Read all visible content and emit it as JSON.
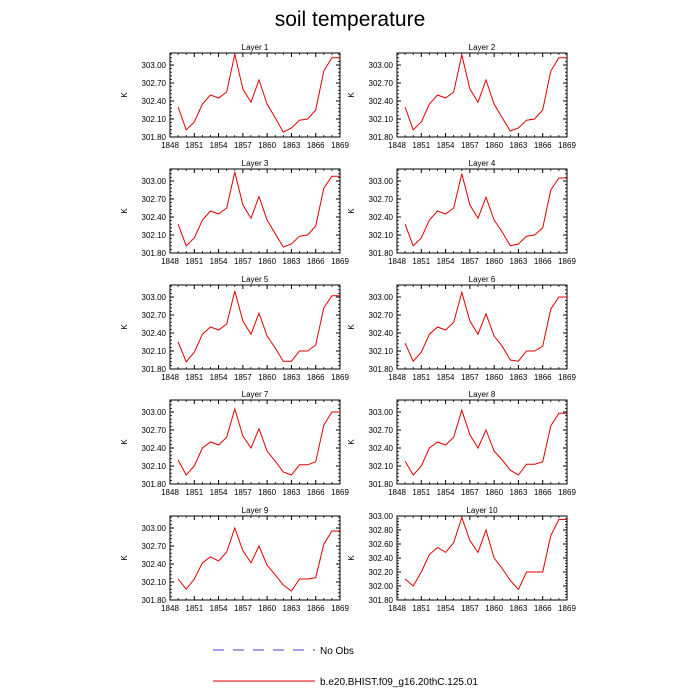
{
  "title": "soil temperature",
  "legend": {
    "placement": "bottom-center",
    "entries": [
      {
        "label": "No Obs",
        "color": "#4040c0",
        "style": "dashed"
      },
      {
        "label": "b.e20.BHIST.f09_g16.20thC.125.01",
        "color": "#e00000",
        "style": "solid"
      }
    ]
  },
  "chart_data": [
    {
      "type": "line",
      "title": "Layer 1",
      "ylabel": "K",
      "xlim": [
        1848,
        1869
      ],
      "ylim": [
        301.8,
        303.2
      ],
      "xticks": [
        "1848",
        "1851",
        "1854",
        "1857",
        "1860",
        "1863",
        "1866",
        "1869"
      ],
      "yticks": [
        "301.80",
        "302.10",
        "302.40",
        "302.70",
        "303.00"
      ],
      "x": [
        1849,
        1850,
        1851,
        1852,
        1853,
        1854,
        1855,
        1856,
        1857,
        1858,
        1859,
        1860,
        1861,
        1862,
        1863,
        1864,
        1865,
        1866,
        1867,
        1868,
        1869
      ],
      "series": [
        {
          "name": "b.e20.BHIST.f09_g16.20thC.125.01",
          "color": "#e00000",
          "values": [
            302.3,
            301.92,
            302.05,
            302.35,
            302.5,
            302.45,
            302.55,
            303.18,
            302.6,
            302.38,
            302.75,
            302.35,
            302.12,
            301.88,
            301.95,
            302.08,
            302.1,
            302.25,
            302.9,
            303.12,
            303.12
          ]
        }
      ]
    },
    {
      "type": "line",
      "title": "Layer 2",
      "ylabel": "K",
      "xlim": [
        1848,
        1869
      ],
      "ylim": [
        301.8,
        303.2
      ],
      "xticks": [
        "1848",
        "1851",
        "1854",
        "1857",
        "1860",
        "1863",
        "1866",
        "1869"
      ],
      "yticks": [
        "301.80",
        "302.10",
        "302.40",
        "302.70",
        "303.00"
      ],
      "x": [
        1849,
        1850,
        1851,
        1852,
        1853,
        1854,
        1855,
        1856,
        1857,
        1858,
        1859,
        1860,
        1861,
        1862,
        1863,
        1864,
        1865,
        1866,
        1867,
        1868,
        1869
      ],
      "series": [
        {
          "name": "b.e20.BHIST.f09_g16.20thC.125.01",
          "color": "#e00000",
          "values": [
            302.3,
            301.92,
            302.05,
            302.35,
            302.5,
            302.45,
            302.55,
            303.17,
            302.6,
            302.38,
            302.75,
            302.35,
            302.12,
            301.9,
            301.95,
            302.08,
            302.1,
            302.25,
            302.9,
            303.12,
            303.12
          ]
        }
      ]
    },
    {
      "type": "line",
      "title": "Layer 3",
      "ylabel": "K",
      "xlim": [
        1848,
        1869
      ],
      "ylim": [
        301.8,
        303.2
      ],
      "xticks": [
        "1848",
        "1851",
        "1854",
        "1857",
        "1860",
        "1863",
        "1866",
        "1869"
      ],
      "yticks": [
        "301.80",
        "302.10",
        "302.40",
        "302.70",
        "303.00"
      ],
      "x": [
        1849,
        1850,
        1851,
        1852,
        1853,
        1854,
        1855,
        1856,
        1857,
        1858,
        1859,
        1860,
        1861,
        1862,
        1863,
        1864,
        1865,
        1866,
        1867,
        1868,
        1869
      ],
      "series": [
        {
          "name": "b.e20.BHIST.f09_g16.20thC.125.01",
          "color": "#e00000",
          "values": [
            302.28,
            301.92,
            302.05,
            302.35,
            302.5,
            302.45,
            302.55,
            303.15,
            302.6,
            302.38,
            302.74,
            302.35,
            302.12,
            301.9,
            301.95,
            302.08,
            302.1,
            302.25,
            302.88,
            303.08,
            303.08
          ]
        }
      ]
    },
    {
      "type": "line",
      "title": "Layer 4",
      "ylabel": "K",
      "xlim": [
        1848,
        1869
      ],
      "ylim": [
        301.8,
        303.2
      ],
      "xticks": [
        "1848",
        "1851",
        "1854",
        "1857",
        "1860",
        "1863",
        "1866",
        "1869"
      ],
      "yticks": [
        "301.80",
        "302.10",
        "302.40",
        "302.70",
        "303.00"
      ],
      "x": [
        1849,
        1850,
        1851,
        1852,
        1853,
        1854,
        1855,
        1856,
        1857,
        1858,
        1859,
        1860,
        1861,
        1862,
        1863,
        1864,
        1865,
        1866,
        1867,
        1868,
        1869
      ],
      "series": [
        {
          "name": "b.e20.BHIST.f09_g16.20thC.125.01",
          "color": "#e00000",
          "values": [
            302.28,
            301.92,
            302.05,
            302.35,
            302.5,
            302.45,
            302.55,
            303.12,
            302.6,
            302.38,
            302.73,
            302.35,
            302.15,
            301.92,
            301.95,
            302.08,
            302.1,
            302.22,
            302.85,
            303.05,
            303.05
          ]
        }
      ]
    },
    {
      "type": "line",
      "title": "Layer 5",
      "ylabel": "K",
      "xlim": [
        1848,
        1869
      ],
      "ylim": [
        301.8,
        303.2
      ],
      "xticks": [
        "1848",
        "1851",
        "1854",
        "1857",
        "1860",
        "1863",
        "1866",
        "1869"
      ],
      "yticks": [
        "301.80",
        "302.10",
        "302.40",
        "302.70",
        "303.00"
      ],
      "x": [
        1849,
        1850,
        1851,
        1852,
        1853,
        1854,
        1855,
        1856,
        1857,
        1858,
        1859,
        1860,
        1861,
        1862,
        1863,
        1864,
        1865,
        1866,
        1867,
        1868,
        1869
      ],
      "series": [
        {
          "name": "b.e20.BHIST.f09_g16.20thC.125.01",
          "color": "#e00000",
          "values": [
            302.25,
            301.92,
            302.08,
            302.38,
            302.5,
            302.45,
            302.55,
            303.1,
            302.6,
            302.38,
            302.73,
            302.35,
            302.15,
            301.93,
            301.93,
            302.1,
            302.1,
            302.2,
            302.82,
            303.02,
            303.02
          ]
        }
      ]
    },
    {
      "type": "line",
      "title": "Layer 6",
      "ylabel": "K",
      "xlim": [
        1848,
        1869
      ],
      "ylim": [
        301.8,
        303.2
      ],
      "xticks": [
        "1848",
        "1851",
        "1854",
        "1857",
        "1860",
        "1863",
        "1866",
        "1869"
      ],
      "yticks": [
        "301.80",
        "302.10",
        "302.40",
        "302.70",
        "303.00"
      ],
      "x": [
        1849,
        1850,
        1851,
        1852,
        1853,
        1854,
        1855,
        1856,
        1857,
        1858,
        1859,
        1860,
        1861,
        1862,
        1863,
        1864,
        1865,
        1866,
        1867,
        1868,
        1869
      ],
      "series": [
        {
          "name": "b.e20.BHIST.f09_g16.20thC.125.01",
          "color": "#e00000",
          "values": [
            302.23,
            301.93,
            302.08,
            302.38,
            302.5,
            302.45,
            302.58,
            303.08,
            302.6,
            302.38,
            302.72,
            302.35,
            302.18,
            301.95,
            301.93,
            302.1,
            302.1,
            302.18,
            302.8,
            303.0,
            303.0
          ]
        }
      ]
    },
    {
      "type": "line",
      "title": "Layer 7",
      "ylabel": "K",
      "xlim": [
        1848,
        1869
      ],
      "ylim": [
        301.8,
        303.2
      ],
      "xticks": [
        "1848",
        "1851",
        "1854",
        "1857",
        "1860",
        "1863",
        "1866",
        "1869"
      ],
      "yticks": [
        "301.80",
        "302.10",
        "302.40",
        "302.70",
        "303.00"
      ],
      "x": [
        1849,
        1850,
        1851,
        1852,
        1853,
        1854,
        1855,
        1856,
        1857,
        1858,
        1859,
        1860,
        1861,
        1862,
        1863,
        1864,
        1865,
        1866,
        1867,
        1868,
        1869
      ],
      "series": [
        {
          "name": "b.e20.BHIST.f09_g16.20thC.125.01",
          "color": "#e00000",
          "values": [
            302.2,
            301.95,
            302.1,
            302.4,
            302.5,
            302.45,
            302.58,
            303.05,
            302.6,
            302.4,
            302.72,
            302.35,
            302.18,
            302.0,
            301.95,
            302.12,
            302.12,
            302.17,
            302.78,
            303.0,
            303.0
          ]
        }
      ]
    },
    {
      "type": "line",
      "title": "Layer 8",
      "ylabel": "K",
      "xlim": [
        1848,
        1869
      ],
      "ylim": [
        301.8,
        303.2
      ],
      "xticks": [
        "1848",
        "1851",
        "1854",
        "1857",
        "1860",
        "1863",
        "1866",
        "1869"
      ],
      "yticks": [
        "301.80",
        "302.10",
        "302.40",
        "302.70",
        "303.00"
      ],
      "x": [
        1849,
        1850,
        1851,
        1852,
        1853,
        1854,
        1855,
        1856,
        1857,
        1858,
        1859,
        1860,
        1861,
        1862,
        1863,
        1864,
        1865,
        1866,
        1867,
        1868,
        1869
      ],
      "series": [
        {
          "name": "b.e20.BHIST.f09_g16.20thC.125.01",
          "color": "#e00000",
          "values": [
            302.18,
            301.95,
            302.1,
            302.4,
            302.5,
            302.45,
            302.58,
            303.03,
            302.62,
            302.4,
            302.7,
            302.35,
            302.2,
            302.03,
            301.95,
            302.13,
            302.13,
            302.17,
            302.77,
            302.98,
            302.98
          ]
        }
      ]
    },
    {
      "type": "line",
      "title": "Layer 9",
      "ylabel": "K",
      "xlim": [
        1848,
        1869
      ],
      "ylim": [
        301.8,
        303.2
      ],
      "xticks": [
        "1848",
        "1851",
        "1854",
        "1857",
        "1860",
        "1863",
        "1866",
        "1869"
      ],
      "yticks": [
        "301.80",
        "302.10",
        "302.40",
        "302.70",
        "303.00"
      ],
      "x": [
        1849,
        1850,
        1851,
        1852,
        1853,
        1854,
        1855,
        1856,
        1857,
        1858,
        1859,
        1860,
        1861,
        1862,
        1863,
        1864,
        1865,
        1866,
        1867,
        1868,
        1869
      ],
      "series": [
        {
          "name": "b.e20.BHIST.f09_g16.20thC.125.01",
          "color": "#e00000",
          "values": [
            302.15,
            301.98,
            302.15,
            302.42,
            302.52,
            302.45,
            302.6,
            303.0,
            302.62,
            302.42,
            302.7,
            302.38,
            302.22,
            302.05,
            301.95,
            302.15,
            302.15,
            302.17,
            302.73,
            302.95,
            302.95
          ]
        }
      ]
    },
    {
      "type": "line",
      "title": "Layer 10",
      "ylabel": "K",
      "xlim": [
        1848,
        1869
      ],
      "ylim": [
        301.8,
        303.0
      ],
      "xticks": [
        "1848",
        "1851",
        "1854",
        "1857",
        "1860",
        "1863",
        "1866",
        "1869"
      ],
      "yticks": [
        "301.80",
        "302.00",
        "302.20",
        "302.40",
        "302.60",
        "302.80",
        "303.00"
      ],
      "x": [
        1849,
        1850,
        1851,
        1852,
        1853,
        1854,
        1855,
        1856,
        1857,
        1858,
        1859,
        1860,
        1861,
        1862,
        1863,
        1864,
        1865,
        1866,
        1867,
        1868,
        1869
      ],
      "series": [
        {
          "name": "b.e20.BHIST.f09_g16.20thC.125.01",
          "color": "#e00000",
          "values": [
            302.1,
            302.0,
            302.2,
            302.45,
            302.55,
            302.48,
            302.62,
            302.98,
            302.65,
            302.48,
            302.8,
            302.4,
            302.25,
            302.08,
            301.95,
            302.2,
            302.2,
            302.2,
            302.72,
            302.95,
            302.95
          ]
        }
      ]
    }
  ]
}
